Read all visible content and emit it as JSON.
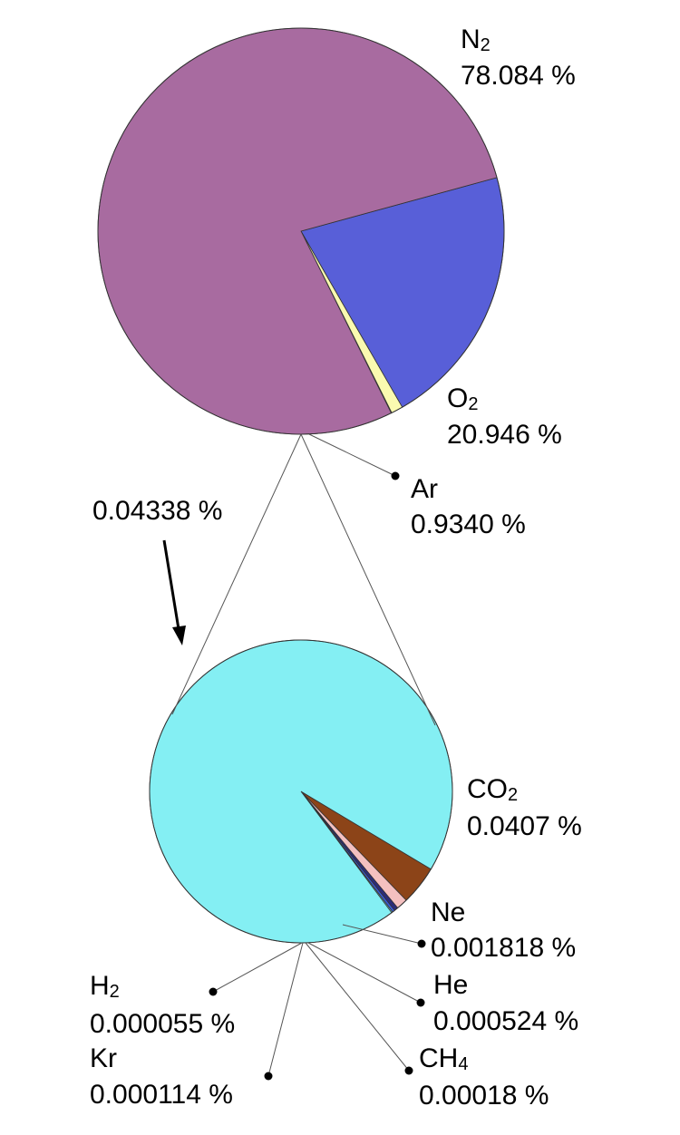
{
  "chart_data": [
    {
      "type": "pie",
      "slices": [
        {
          "name": "N",
          "sub": "2",
          "value": 78.084,
          "label": "78.084 %",
          "color": "#a86ba0"
        },
        {
          "name": "O",
          "sub": "2",
          "value": 20.946,
          "label": "20.946 %",
          "color": "#585fd8"
        },
        {
          "name": "Ar",
          "sub": "",
          "value": 0.934,
          "label": "0.9340 %",
          "color": "#fafab0"
        },
        {
          "name": "",
          "sub": "",
          "value": 0.04338,
          "label": "",
          "color": "#9a9a9a"
        }
      ]
    },
    {
      "type": "pie",
      "total_label": "0.04338 %",
      "slices": [
        {
          "name": "CO",
          "sub": "2",
          "value": 0.0407,
          "label": "0.0407 %",
          "color": "#84eff3"
        },
        {
          "name": "Ne",
          "sub": "",
          "value": 0.001818,
          "label": "0.001818 %",
          "color": "#8c4418"
        },
        {
          "name": "He",
          "sub": "",
          "value": 0.000524,
          "label": "0.000524 %",
          "color": "#f4c0c0"
        },
        {
          "name": "CH",
          "sub": "4",
          "value": 0.00018,
          "label": "0.00018 %",
          "color": "#2c2c78"
        },
        {
          "name": "Kr",
          "sub": "",
          "value": 0.000114,
          "label": "0.000114 %",
          "color": "#3a5ad8"
        },
        {
          "name": "H",
          "sub": "2",
          "value": 5.5e-05,
          "label": "0.000055 %",
          "color": "#84eff3"
        }
      ]
    }
  ]
}
